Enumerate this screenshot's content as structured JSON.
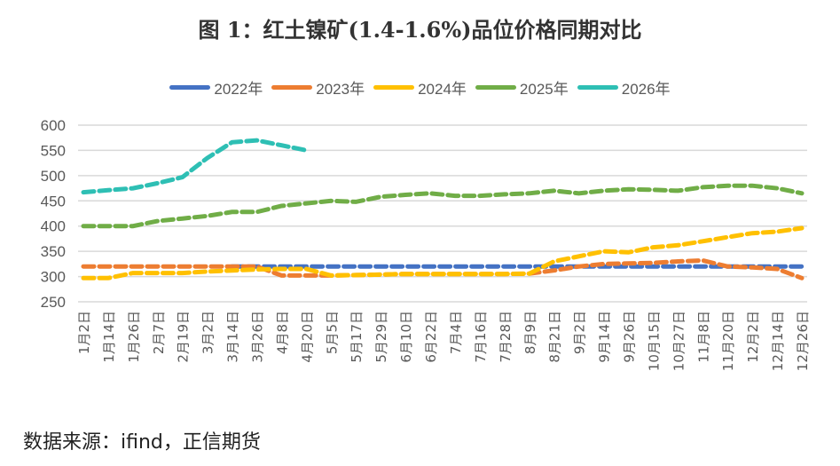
{
  "chart_data": {
    "type": "line",
    "title": "图 1：红土镍矿(1.4-1.6%)品位价格同期对比",
    "xlabel": "",
    "ylabel": "",
    "ylim": [
      250,
      600
    ],
    "yticks": [
      "600",
      "550",
      "500",
      "450",
      "400",
      "350",
      "300",
      "250"
    ],
    "grid": true,
    "legend_position": "top",
    "categories": [
      "1月2日",
      "1月14日",
      "1月26日",
      "2月7日",
      "2月19日",
      "3月2日",
      "3月14日",
      "3月26日",
      "4月8日",
      "4月20日",
      "5月5日",
      "5月17日",
      "5月29日",
      "6月10日",
      "6月22日",
      "7月4日",
      "7月16日",
      "7月28日",
      "8月9日",
      "8月21日",
      "9月2日",
      "9月14日",
      "9月26日",
      "10月15日",
      "10月27日",
      "11月8日",
      "11月20日",
      "12月2日",
      "12月14日",
      "12月26日"
    ],
    "series": [
      {
        "name": "2022年",
        "color": "#4472C4",
        "values": [
          null,
          null,
          null,
          null,
          null,
          null,
          320,
          320,
          320,
          320,
          320,
          320,
          320,
          320,
          320,
          320,
          320,
          320,
          320,
          320,
          320,
          320,
          320,
          320,
          320,
          320,
          320,
          320,
          320,
          320
        ]
      },
      {
        "name": "2023年",
        "color": "#ED7D31",
        "values": [
          320,
          320,
          320,
          320,
          320,
          320,
          320,
          320,
          302,
          302,
          302,
          303,
          304,
          305,
          305,
          305,
          305,
          305,
          306,
          312,
          320,
          325,
          326,
          327,
          330,
          332,
          320,
          318,
          315,
          297
        ]
      },
      {
        "name": "2024年",
        "color": "#FFC000",
        "values": [
          297,
          297,
          307,
          307,
          307,
          310,
          312,
          314,
          315,
          315,
          302,
          303,
          304,
          305,
          305,
          305,
          305,
          305,
          306,
          330,
          340,
          350,
          348,
          358,
          362,
          370,
          378,
          386,
          389,
          396
        ]
      },
      {
        "name": "2025年",
        "color": "#70AD47",
        "values": [
          400,
          400,
          400,
          410,
          415,
          420,
          428,
          428,
          440,
          445,
          450,
          448,
          458,
          462,
          465,
          460,
          460,
          463,
          465,
          470,
          465,
          470,
          473,
          472,
          470,
          477,
          480,
          480,
          475,
          465
        ]
      },
      {
        "name": "2026年",
        "color": "#2EBFB4",
        "values": [
          467,
          471,
          475,
          485,
          497,
          535,
          566,
          570,
          560,
          550,
          null,
          null,
          null,
          null,
          null,
          null,
          null,
          null,
          null,
          null,
          null,
          null,
          null,
          null,
          null,
          null,
          null,
          null,
          null,
          null
        ]
      }
    ]
  },
  "footer": {
    "source": "数据来源：ifind，正信期货"
  }
}
